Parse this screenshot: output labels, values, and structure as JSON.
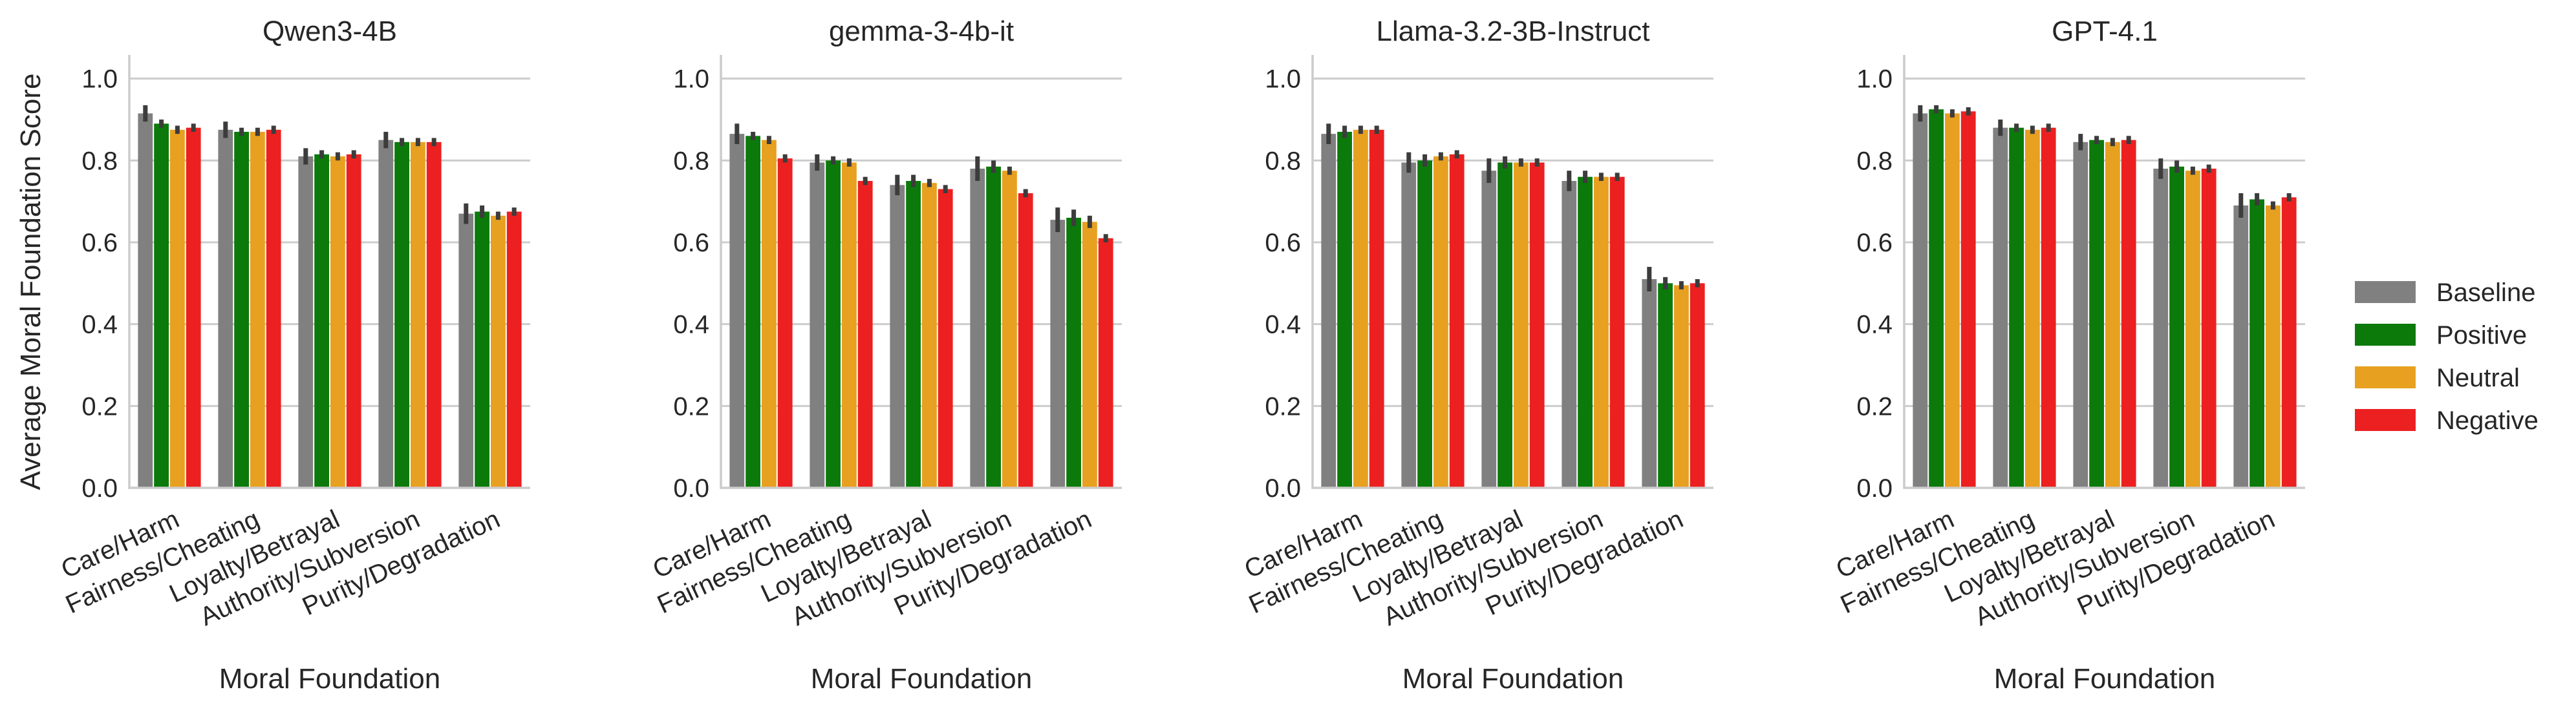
{
  "chart_data": {
    "type": "bar",
    "ylabel": "Average Moral Foundation Score",
    "xlabel": "Moral Foundation",
    "ylim": [
      0,
      1.05
    ],
    "yticks": [
      "0.0",
      "0.2",
      "0.4",
      "0.6",
      "0.8",
      "1.0"
    ],
    "categories": [
      "Care/Harm",
      "Fairness/Cheating",
      "Loyalty/Betrayal",
      "Authority/Subversion",
      "Purity/Degradation"
    ],
    "legend": {
      "placement": "right",
      "entries": [
        {
          "name": "Baseline",
          "color": "#808080"
        },
        {
          "name": "Positive",
          "color": "#0b7a0b"
        },
        {
          "name": "Neutral",
          "color": "#e8a020"
        },
        {
          "name": "Negative",
          "color": "#ec2020"
        }
      ]
    },
    "panels": [
      {
        "title": "Qwen3-4B",
        "series": [
          {
            "name": "Baseline",
            "values": [
              0.915,
              0.875,
              0.81,
              0.85,
              0.67
            ],
            "err": [
              0.02,
              0.02,
              0.02,
              0.02,
              0.025
            ]
          },
          {
            "name": "Positive",
            "values": [
              0.89,
              0.87,
              0.815,
              0.845,
              0.675
            ],
            "err": [
              0.01,
              0.01,
              0.01,
              0.01,
              0.015
            ]
          },
          {
            "name": "Neutral",
            "values": [
              0.875,
              0.87,
              0.81,
              0.845,
              0.665
            ],
            "err": [
              0.01,
              0.01,
              0.01,
              0.01,
              0.01
            ]
          },
          {
            "name": "Negative",
            "values": [
              0.88,
              0.875,
              0.815,
              0.845,
              0.675
            ],
            "err": [
              0.01,
              0.01,
              0.01,
              0.01,
              0.01
            ]
          }
        ]
      },
      {
        "title": "gemma-3-4b-it",
        "series": [
          {
            "name": "Baseline",
            "values": [
              0.865,
              0.795,
              0.74,
              0.78,
              0.655
            ],
            "err": [
              0.025,
              0.02,
              0.025,
              0.03,
              0.03
            ]
          },
          {
            "name": "Positive",
            "values": [
              0.86,
              0.8,
              0.75,
              0.785,
              0.66
            ],
            "err": [
              0.01,
              0.01,
              0.015,
              0.015,
              0.02
            ]
          },
          {
            "name": "Neutral",
            "values": [
              0.85,
              0.795,
              0.745,
              0.775,
              0.65
            ],
            "err": [
              0.01,
              0.01,
              0.01,
              0.01,
              0.015
            ]
          },
          {
            "name": "Negative",
            "values": [
              0.805,
              0.75,
              0.73,
              0.72,
              0.61
            ],
            "err": [
              0.01,
              0.01,
              0.01,
              0.01,
              0.01
            ]
          }
        ]
      },
      {
        "title": "Llama-3.2-3B-Instruct",
        "series": [
          {
            "name": "Baseline",
            "values": [
              0.865,
              0.795,
              0.775,
              0.75,
              0.51
            ],
            "err": [
              0.025,
              0.025,
              0.03,
              0.025,
              0.03
            ]
          },
          {
            "name": "Positive",
            "values": [
              0.87,
              0.8,
              0.795,
              0.76,
              0.5
            ],
            "err": [
              0.015,
              0.015,
              0.015,
              0.015,
              0.015
            ]
          },
          {
            "name": "Neutral",
            "values": [
              0.875,
              0.81,
              0.795,
              0.76,
              0.495
            ],
            "err": [
              0.01,
              0.01,
              0.01,
              0.01,
              0.01
            ]
          },
          {
            "name": "Negative",
            "values": [
              0.875,
              0.815,
              0.795,
              0.76,
              0.5
            ],
            "err": [
              0.01,
              0.01,
              0.01,
              0.01,
              0.01
            ]
          }
        ]
      },
      {
        "title": "GPT-4.1",
        "series": [
          {
            "name": "Baseline",
            "values": [
              0.915,
              0.88,
              0.845,
              0.78,
              0.69
            ],
            "err": [
              0.02,
              0.02,
              0.02,
              0.025,
              0.03
            ]
          },
          {
            "name": "Positive",
            "values": [
              0.925,
              0.88,
              0.85,
              0.785,
              0.705
            ],
            "err": [
              0.01,
              0.01,
              0.01,
              0.015,
              0.015
            ]
          },
          {
            "name": "Neutral",
            "values": [
              0.915,
              0.875,
              0.845,
              0.775,
              0.69
            ],
            "err": [
              0.01,
              0.01,
              0.01,
              0.01,
              0.01
            ]
          },
          {
            "name": "Negative",
            "values": [
              0.92,
              0.88,
              0.85,
              0.78,
              0.71
            ],
            "err": [
              0.01,
              0.01,
              0.01,
              0.01,
              0.01
            ]
          }
        ]
      }
    ]
  }
}
